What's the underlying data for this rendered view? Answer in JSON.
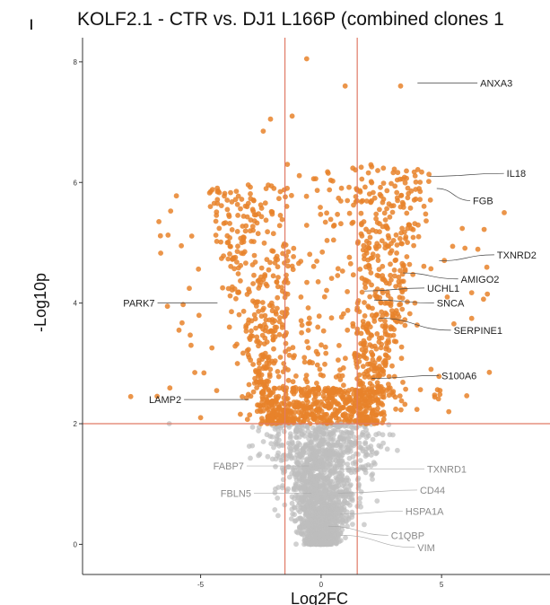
{
  "panel_marker": "ı",
  "chart_data": {
    "type": "scatter",
    "title": "KOLF2.1 - CTR vs. DJ1 L166P (combined clones 1",
    "xlabel": "Log2FC",
    "ylabel": "-Log10p",
    "xlim": [
      -9.9,
      9.5
    ],
    "ylim": [
      -0.5,
      8.4
    ],
    "x_ticks": [
      -5,
      0,
      5
    ],
    "y_ticks": [
      0,
      2,
      4,
      6,
      8
    ],
    "fc_threshold": 1.5,
    "p_threshold": 2,
    "colors": {
      "significant": "#e8822a",
      "not_significant": "#bdbdbd",
      "threshold_line": "#e07a66",
      "axis": "#333333",
      "label_sig": "#222222",
      "label_ns": "#8a8a8a",
      "leader_sig": "#444444",
      "leader_ns": "#aaaaaa"
    },
    "labeled_genes": [
      {
        "gene": "ANXA3",
        "x": 4.0,
        "y": 7.65,
        "label_x": 6.6,
        "label_y": 7.65,
        "significant": true
      },
      {
        "gene": "IL18",
        "x": 4.5,
        "y": 6.1,
        "label_x": 7.7,
        "label_y": 6.15,
        "significant": true
      },
      {
        "gene": "FGB",
        "x": 4.8,
        "y": 5.9,
        "label_x": 6.3,
        "label_y": 5.7,
        "significant": true
      },
      {
        "gene": "TXNRD2",
        "x": 4.9,
        "y": 4.7,
        "label_x": 7.3,
        "label_y": 4.8,
        "significant": true
      },
      {
        "gene": "AMIGO2",
        "x": 3.4,
        "y": 4.5,
        "label_x": 5.8,
        "label_y": 4.4,
        "significant": true
      },
      {
        "gene": "UCHL1",
        "x": 1.8,
        "y": 4.2,
        "label_x": 4.4,
        "label_y": 4.25,
        "significant": true
      },
      {
        "gene": "SNCA",
        "x": 2.2,
        "y": 4.05,
        "label_x": 4.8,
        "label_y": 4.0,
        "significant": true
      },
      {
        "gene": "SERPINE1",
        "x": 2.4,
        "y": 3.75,
        "label_x": 5.5,
        "label_y": 3.55,
        "significant": true
      },
      {
        "gene": "S100A6",
        "x": 2.1,
        "y": 2.75,
        "label_x": 5.0,
        "label_y": 2.8,
        "significant": true
      },
      {
        "gene": "PARK7",
        "x": -4.3,
        "y": 4.0,
        "label_x": -6.9,
        "label_y": 4.0,
        "significant": true
      },
      {
        "gene": "LAMP2",
        "x": -3.0,
        "y": 2.4,
        "label_x": -5.8,
        "label_y": 2.4,
        "significant": true
      },
      {
        "gene": "FABP7",
        "x": -0.5,
        "y": 1.3,
        "label_x": -3.2,
        "label_y": 1.3,
        "significant": false
      },
      {
        "gene": "TXNRD1",
        "x": 0.7,
        "y": 1.25,
        "label_x": 4.4,
        "label_y": 1.25,
        "significant": false
      },
      {
        "gene": "FBLN5",
        "x": -0.4,
        "y": 0.85,
        "label_x": -2.9,
        "label_y": 0.85,
        "significant": false
      },
      {
        "gene": "CD44",
        "x": 0.7,
        "y": 0.85,
        "label_x": 4.1,
        "label_y": 0.9,
        "significant": false
      },
      {
        "gene": "HSPA1A",
        "x": 0.8,
        "y": 0.5,
        "label_x": 3.5,
        "label_y": 0.55,
        "significant": false
      },
      {
        "gene": "C1QBP",
        "x": 0.3,
        "y": 0.3,
        "label_x": 2.9,
        "label_y": 0.15,
        "significant": false
      },
      {
        "gene": "VIM",
        "x": 0.8,
        "y": 0.15,
        "label_x": 4.0,
        "label_y": -0.05,
        "significant": false
      }
    ],
    "background_points": {
      "description_of_distribution": "volcano shape of ~3000 genes",
      "n_center": 2200,
      "n_sig_right": 520,
      "n_sig_left": 430,
      "n_scatter_outliers": 60
    }
  }
}
